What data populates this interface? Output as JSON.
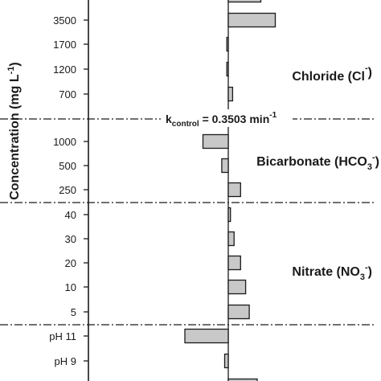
{
  "chart_data": {
    "type": "bar",
    "orientation": "horizontal",
    "ylabel": "Concentration (mg L",
    "ylabel_sup": "-1",
    "ylabel_close": ")",
    "reference_label": {
      "prefix": "k",
      "sub": "control",
      "mid": " = 0.3503 min",
      "sup": "-1"
    },
    "sections": [
      {
        "name_main": "Chloride (Cl",
        "name_sub": "",
        "name_sup": "-",
        "name_close": ")",
        "categories": [
          "",
          "3500",
          "1700",
          "1200",
          "700"
        ],
        "values": [
          0.045,
          0.065,
          -0.002,
          -0.002,
          0.006
        ]
      },
      {
        "name_main": "Bicarbonate (HCO",
        "name_sub": "3",
        "name_sup": "-",
        "name_close": ")",
        "categories": [
          "1000",
          "500",
          "250"
        ],
        "values": [
          -0.035,
          -0.009,
          0.017
        ]
      },
      {
        "name_main": "Nitrate (NO",
        "name_sub": "3",
        "name_sup": "-",
        "name_close": ")",
        "categories": [
          "40",
          "30",
          "20",
          "10",
          "5"
        ],
        "values": [
          0.003,
          0.008,
          0.017,
          0.024,
          0.029
        ]
      },
      {
        "name_main": "",
        "name_sub": "",
        "name_sup": "",
        "name_close": "",
        "categories": [
          "pH 11",
          "pH 9",
          ""
        ],
        "values": [
          -0.06,
          -0.005,
          0.04
        ]
      }
    ]
  }
}
